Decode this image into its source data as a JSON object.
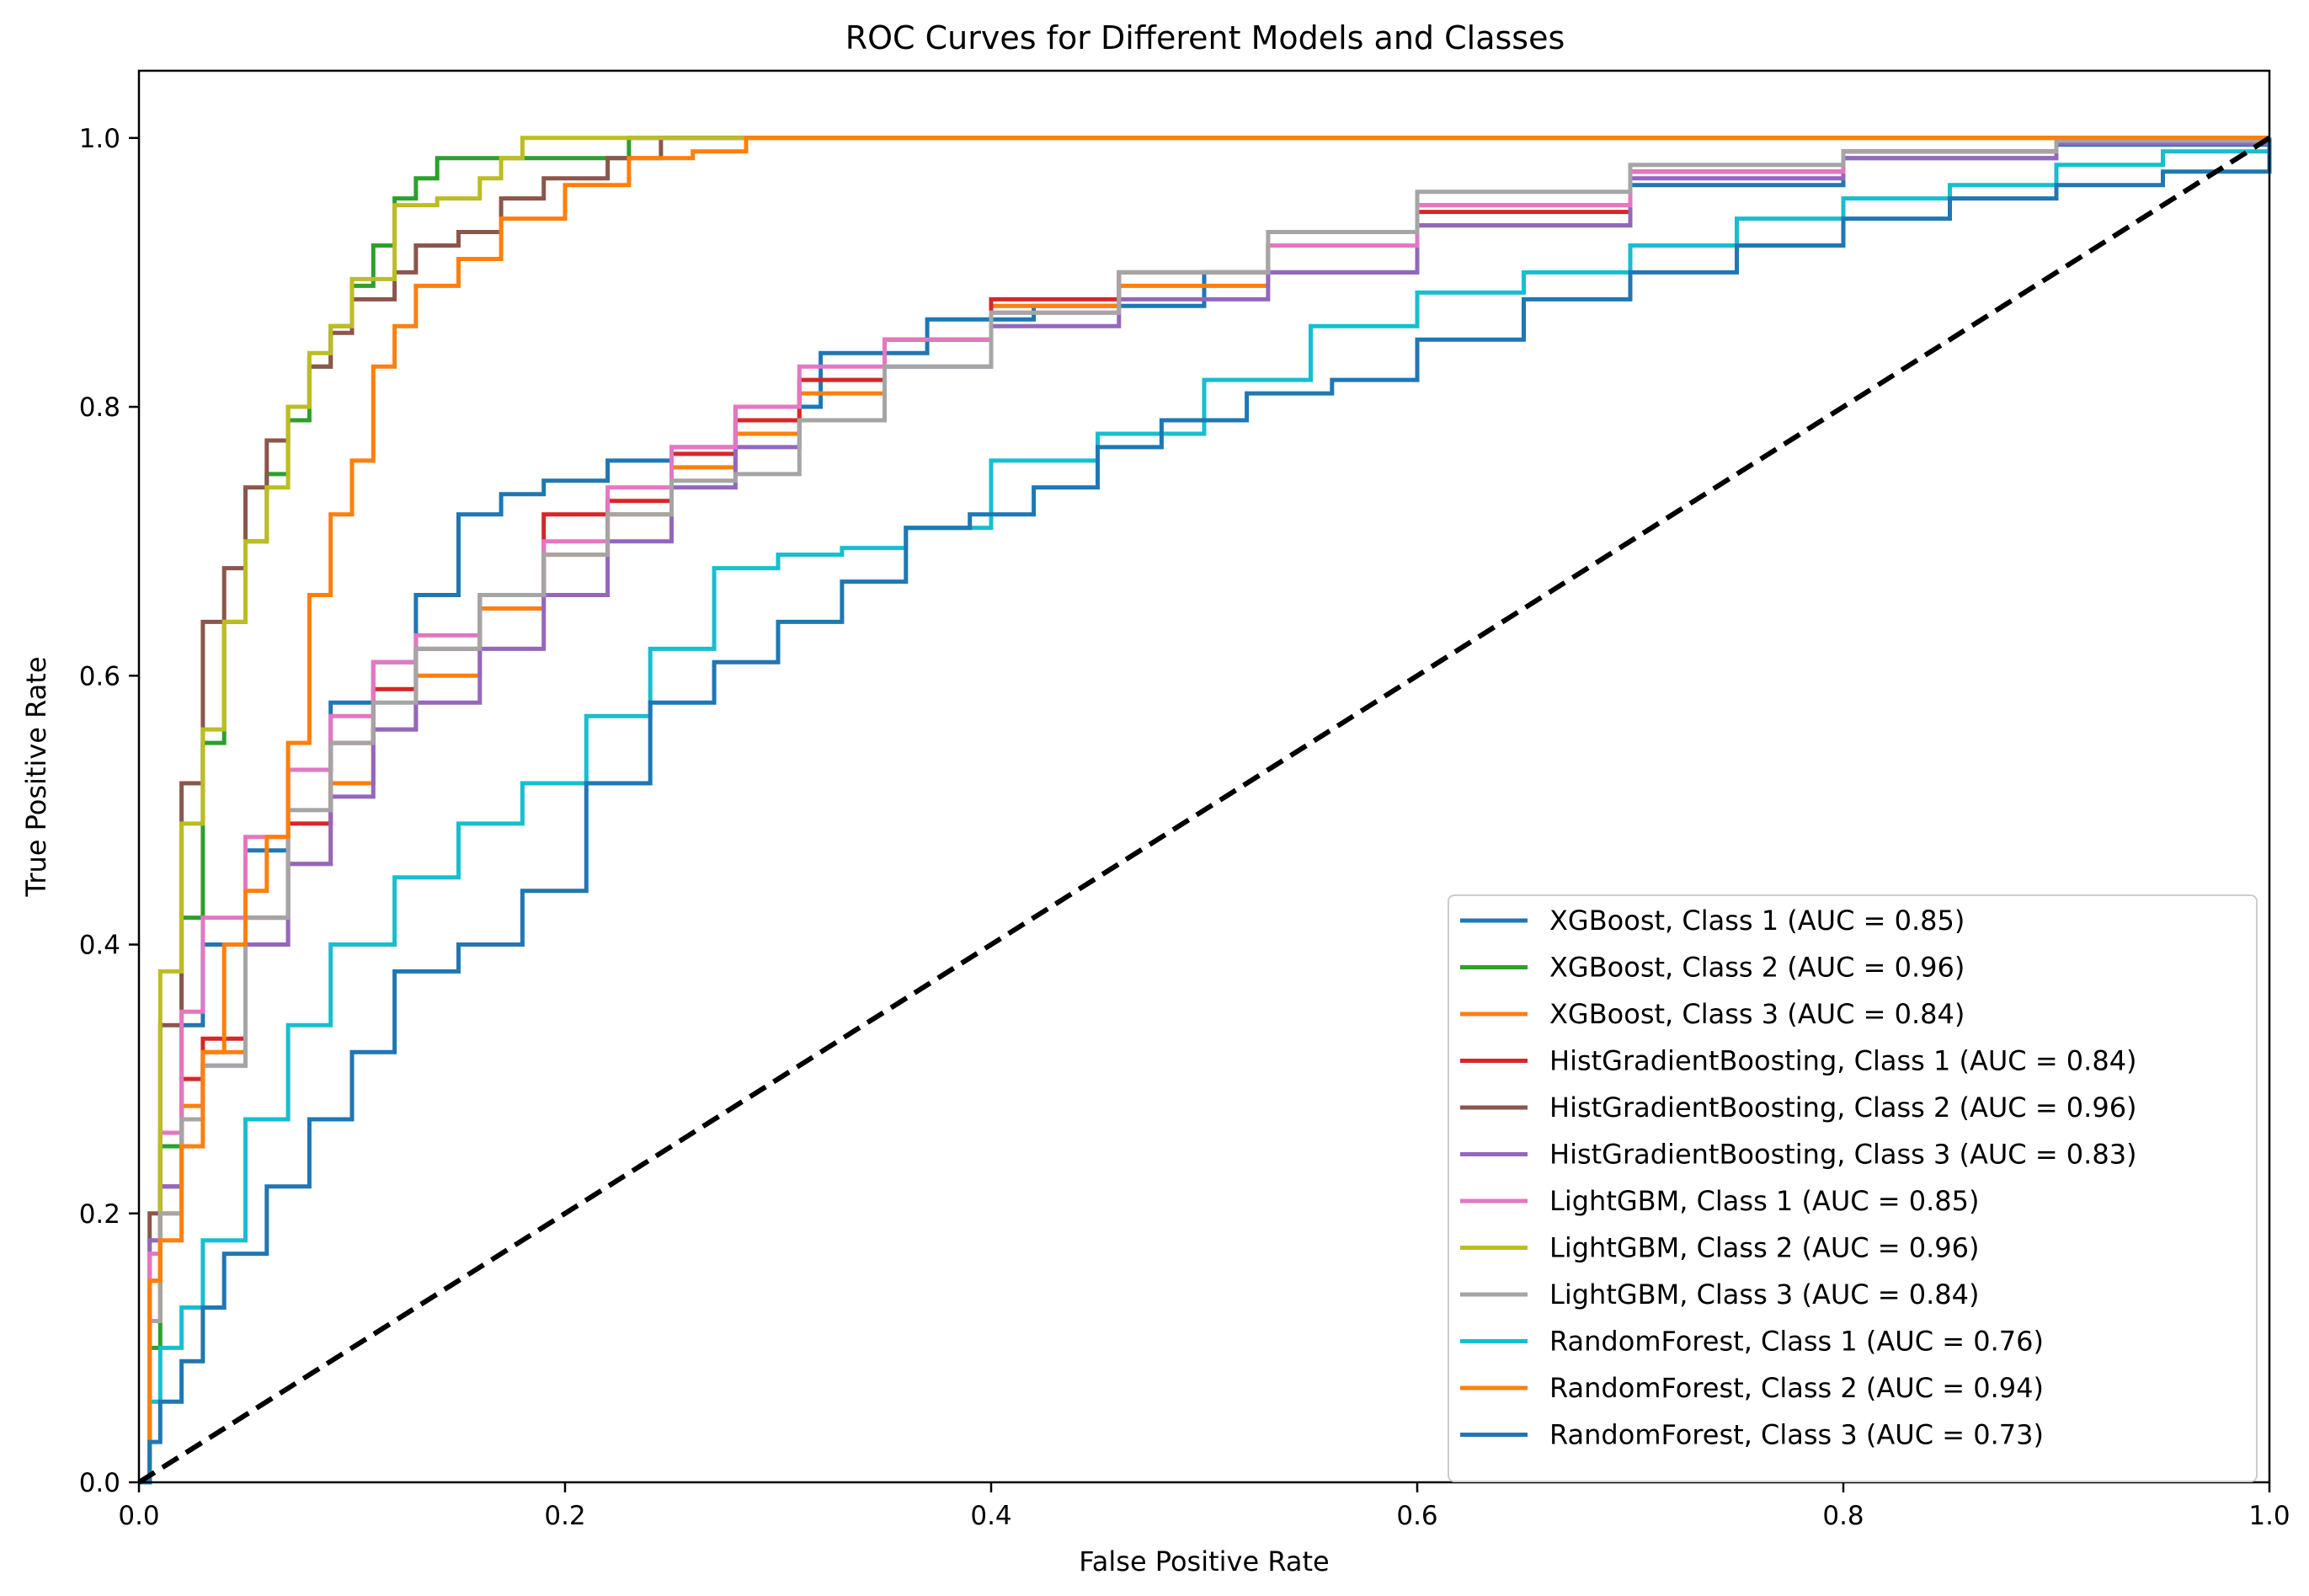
{
  "chart_data": {
    "type": "line",
    "title": "ROC Curves for Different Models and Classes",
    "xlabel": "False Positive Rate",
    "ylabel": "True Positive Rate",
    "xlim": [
      0,
      1
    ],
    "ylim": [
      0,
      1.05
    ],
    "xticks": [
      0.0,
      0.2,
      0.4,
      0.6,
      0.8,
      1.0
    ],
    "yticks": [
      0.0,
      0.2,
      0.4,
      0.6,
      0.8,
      1.0
    ],
    "xtick_labels": [
      "0.0",
      "0.2",
      "0.4",
      "0.6",
      "0.8",
      "1.0"
    ],
    "ytick_labels": [
      "0.0",
      "0.2",
      "0.4",
      "0.6",
      "0.8",
      "1.0"
    ],
    "grid": false,
    "legend_position": "lower-right",
    "series": [
      {
        "name": "XGBoost, Class 1 (AUC = 0.85)",
        "color": "#1f77b4",
        "x": [
          0,
          0.005,
          0.01,
          0.02,
          0.03,
          0.05,
          0.07,
          0.09,
          0.11,
          0.13,
          0.15,
          0.17,
          0.19,
          0.22,
          0.25,
          0.28,
          0.32,
          0.37,
          0.42,
          0.5,
          0.6,
          0.7,
          0.8,
          0.9,
          1.0
        ],
        "y": [
          0,
          0.15,
          0.25,
          0.34,
          0.4,
          0.47,
          0.53,
          0.58,
          0.61,
          0.66,
          0.72,
          0.735,
          0.745,
          0.76,
          0.77,
          0.8,
          0.84,
          0.865,
          0.875,
          0.9,
          0.935,
          0.965,
          0.985,
          0.995,
          1.0
        ]
      },
      {
        "name": "XGBoost, Class 2 (AUC = 0.96)",
        "color": "#2ca02c",
        "x": [
          0,
          0.005,
          0.01,
          0.02,
          0.03,
          0.04,
          0.05,
          0.06,
          0.07,
          0.08,
          0.09,
          0.1,
          0.11,
          0.12,
          0.13,
          0.14,
          0.17,
          0.23,
          0.3,
          1.0
        ],
        "y": [
          0,
          0.1,
          0.25,
          0.42,
          0.55,
          0.64,
          0.7,
          0.75,
          0.79,
          0.83,
          0.86,
          0.89,
          0.92,
          0.955,
          0.97,
          0.985,
          0.985,
          1.0,
          1.0,
          1.0
        ]
      },
      {
        "name": "XGBoost, Class 3 (AUC = 0.84)",
        "color": "#ff7f0e",
        "x": [
          0,
          0.005,
          0.01,
          0.02,
          0.03,
          0.05,
          0.07,
          0.09,
          0.11,
          0.13,
          0.16,
          0.19,
          0.22,
          0.25,
          0.28,
          0.31,
          0.35,
          0.4,
          0.46,
          0.53,
          0.6,
          0.7,
          0.8,
          0.9,
          1.0
        ],
        "y": [
          0,
          0.12,
          0.2,
          0.28,
          0.32,
          0.4,
          0.46,
          0.52,
          0.56,
          0.6,
          0.65,
          0.69,
          0.72,
          0.755,
          0.78,
          0.81,
          0.85,
          0.875,
          0.89,
          0.92,
          0.95,
          0.975,
          0.99,
          0.998,
          1.0
        ]
      },
      {
        "name": "HistGradientBoosting, Class 1 (AUC = 0.84)",
        "color": "#d62728",
        "x": [
          0,
          0.005,
          0.01,
          0.02,
          0.03,
          0.05,
          0.07,
          0.09,
          0.11,
          0.13,
          0.16,
          0.19,
          0.22,
          0.25,
          0.28,
          0.31,
          0.35,
          0.4,
          0.46,
          0.53,
          0.6,
          0.7,
          0.8,
          0.9,
          1.0
        ],
        "y": [
          0,
          0.15,
          0.22,
          0.3,
          0.33,
          0.42,
          0.49,
          0.55,
          0.59,
          0.62,
          0.66,
          0.72,
          0.73,
          0.765,
          0.79,
          0.82,
          0.85,
          0.88,
          0.9,
          0.92,
          0.945,
          0.975,
          0.99,
          0.998,
          1.0
        ]
      },
      {
        "name": "HistGradientBoosting, Class 2 (AUC = 0.96)",
        "color": "#8c564b",
        "x": [
          0,
          0.005,
          0.01,
          0.02,
          0.03,
          0.04,
          0.05,
          0.06,
          0.07,
          0.08,
          0.09,
          0.1,
          0.12,
          0.13,
          0.15,
          0.17,
          0.19,
          0.22,
          0.245,
          1.0
        ],
        "y": [
          0,
          0.2,
          0.34,
          0.52,
          0.64,
          0.68,
          0.74,
          0.775,
          0.8,
          0.83,
          0.855,
          0.88,
          0.9,
          0.92,
          0.93,
          0.955,
          0.97,
          0.985,
          1.0,
          1.0
        ]
      },
      {
        "name": "HistGradientBoosting, Class 3 (AUC = 0.83)",
        "color": "#9467bd",
        "x": [
          0,
          0.005,
          0.01,
          0.02,
          0.03,
          0.05,
          0.07,
          0.09,
          0.11,
          0.13,
          0.16,
          0.19,
          0.22,
          0.25,
          0.28,
          0.31,
          0.35,
          0.4,
          0.46,
          0.53,
          0.6,
          0.7,
          0.8,
          0.9,
          1.0
        ],
        "y": [
          0,
          0.18,
          0.22,
          0.27,
          0.31,
          0.4,
          0.46,
          0.51,
          0.56,
          0.58,
          0.62,
          0.66,
          0.7,
          0.74,
          0.77,
          0.79,
          0.83,
          0.86,
          0.88,
          0.9,
          0.935,
          0.97,
          0.985,
          0.996,
          1.0
        ]
      },
      {
        "name": "LightGBM, Class 1 (AUC = 0.85)",
        "color": "#e377c2",
        "x": [
          0,
          0.005,
          0.01,
          0.02,
          0.03,
          0.05,
          0.07,
          0.09,
          0.11,
          0.13,
          0.16,
          0.19,
          0.22,
          0.25,
          0.28,
          0.31,
          0.35,
          0.4,
          0.46,
          0.53,
          0.6,
          0.7,
          0.8,
          0.9,
          1.0
        ],
        "y": [
          0,
          0.17,
          0.26,
          0.35,
          0.42,
          0.48,
          0.53,
          0.57,
          0.61,
          0.63,
          0.66,
          0.7,
          0.74,
          0.77,
          0.8,
          0.83,
          0.85,
          0.87,
          0.9,
          0.92,
          0.95,
          0.975,
          0.99,
          0.998,
          1.0
        ]
      },
      {
        "name": "LightGBM, Class 2 (AUC = 0.96)",
        "color": "#bcbd22",
        "x": [
          0,
          0.005,
          0.01,
          0.02,
          0.03,
          0.04,
          0.05,
          0.06,
          0.07,
          0.08,
          0.09,
          0.1,
          0.12,
          0.14,
          0.16,
          0.17,
          0.18,
          0.22,
          0.29,
          1.0
        ],
        "y": [
          0,
          0.15,
          0.38,
          0.49,
          0.56,
          0.64,
          0.7,
          0.74,
          0.8,
          0.84,
          0.86,
          0.895,
          0.95,
          0.955,
          0.97,
          0.985,
          1.0,
          1.0,
          1.0,
          1.0
        ]
      },
      {
        "name": "LightGBM, Class 3 (AUC = 0.84)",
        "color": "#a5a5a5",
        "x": [
          0,
          0.005,
          0.01,
          0.02,
          0.03,
          0.05,
          0.07,
          0.09,
          0.11,
          0.13,
          0.16,
          0.19,
          0.22,
          0.25,
          0.28,
          0.31,
          0.35,
          0.4,
          0.46,
          0.53,
          0.6,
          0.7,
          0.8,
          0.9,
          1.0
        ],
        "y": [
          0,
          0.12,
          0.2,
          0.27,
          0.31,
          0.42,
          0.5,
          0.55,
          0.58,
          0.62,
          0.66,
          0.69,
          0.72,
          0.745,
          0.75,
          0.79,
          0.83,
          0.87,
          0.9,
          0.93,
          0.96,
          0.98,
          0.99,
          0.998,
          1.0
        ]
      },
      {
        "name": "RandomForest, Class 1 (AUC = 0.76)",
        "color": "#17becf",
        "x": [
          0,
          0.005,
          0.01,
          0.02,
          0.03,
          0.05,
          0.07,
          0.09,
          0.12,
          0.15,
          0.18,
          0.21,
          0.24,
          0.27,
          0.3,
          0.33,
          0.36,
          0.4,
          0.45,
          0.5,
          0.55,
          0.6,
          0.65,
          0.7,
          0.75,
          0.8,
          0.85,
          0.9,
          0.95,
          1.0
        ],
        "y": [
          0,
          0.06,
          0.1,
          0.13,
          0.18,
          0.27,
          0.34,
          0.4,
          0.45,
          0.49,
          0.52,
          0.57,
          0.62,
          0.68,
          0.69,
          0.695,
          0.71,
          0.76,
          0.78,
          0.82,
          0.86,
          0.885,
          0.9,
          0.92,
          0.94,
          0.955,
          0.965,
          0.98,
          0.99,
          1.0
        ]
      },
      {
        "name": "RandomForest, Class 2 (AUC = 0.94)",
        "color": "#ff7f0e",
        "x": [
          0,
          0.005,
          0.01,
          0.02,
          0.03,
          0.04,
          0.05,
          0.06,
          0.07,
          0.08,
          0.09,
          0.1,
          0.11,
          0.12,
          0.13,
          0.15,
          0.17,
          0.2,
          0.23,
          0.26,
          0.285,
          1.0
        ],
        "y": [
          0,
          0.15,
          0.18,
          0.25,
          0.32,
          0.4,
          0.44,
          0.48,
          0.55,
          0.66,
          0.72,
          0.76,
          0.83,
          0.86,
          0.89,
          0.91,
          0.94,
          0.965,
          0.985,
          0.99,
          1.0,
          1.0
        ]
      },
      {
        "name": "RandomForest, Class 3 (AUC = 0.73)",
        "color": "#1f77b4",
        "x": [
          0,
          0.005,
          0.01,
          0.02,
          0.03,
          0.04,
          0.06,
          0.08,
          0.1,
          0.12,
          0.15,
          0.18,
          0.21,
          0.24,
          0.27,
          0.3,
          0.33,
          0.36,
          0.39,
          0.42,
          0.45,
          0.48,
          0.52,
          0.56,
          0.6,
          0.65,
          0.7,
          0.75,
          0.8,
          0.85,
          0.9,
          0.95,
          1.0
        ],
        "y": [
          0,
          0.03,
          0.06,
          0.09,
          0.13,
          0.17,
          0.22,
          0.27,
          0.32,
          0.38,
          0.4,
          0.44,
          0.52,
          0.58,
          0.61,
          0.64,
          0.67,
          0.71,
          0.72,
          0.74,
          0.77,
          0.79,
          0.81,
          0.82,
          0.85,
          0.88,
          0.9,
          0.92,
          0.94,
          0.955,
          0.965,
          0.975,
          1.0
        ]
      }
    ],
    "diagonal": {
      "label": "",
      "color": "#000000",
      "style": "dashed",
      "x": [
        0,
        1
      ],
      "y": [
        0,
        1
      ]
    }
  }
}
